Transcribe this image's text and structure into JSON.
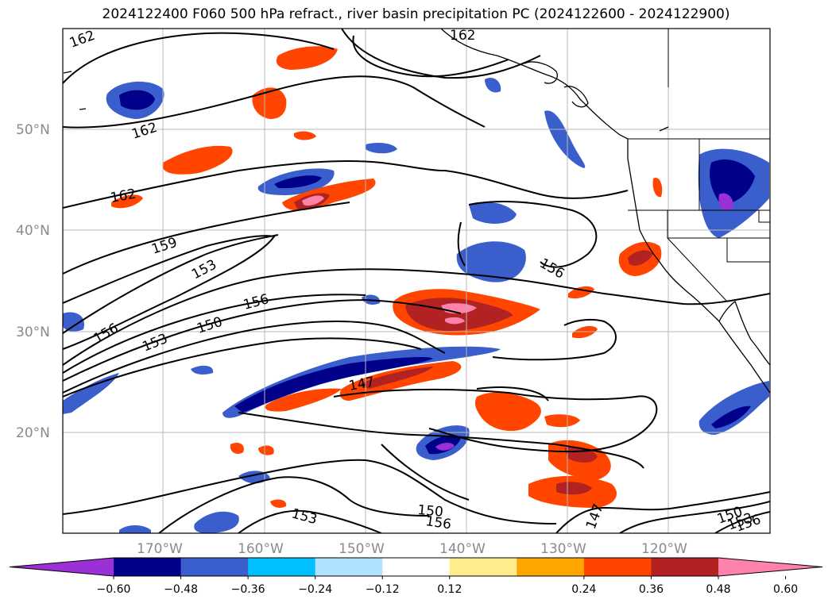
{
  "title": "2024122400 F060 500 hPa refract., river basin precipitation PC (2024122600 - 2024122900)",
  "lat_labels": [
    "50°N",
    "40°N",
    "30°N",
    "20°N"
  ],
  "lon_labels": [
    "170°W",
    "160°W",
    "150°W",
    "140°W",
    "130°W",
    "120°W"
  ],
  "contour_labels": [
    "162",
    "162",
    "162",
    "162",
    "159",
    "153",
    "156",
    "150",
    "153",
    "156",
    "147",
    "156",
    "150",
    "156",
    "153",
    "147",
    "150",
    "153",
    "156"
  ],
  "colorbar": {
    "ticks": [
      "−0.60",
      "−0.48",
      "−0.36",
      "−0.24",
      "−0.12",
      "0.12",
      "0.24",
      "0.36",
      "0.48",
      "0.60"
    ],
    "colors": [
      "#9b30d6",
      "#00008b",
      "#3a5fcd",
      "#00bfff",
      "#b0e2ff",
      "#ffffff",
      "#ffec8b",
      "#ffa500",
      "#ff4500",
      "#b22222",
      "#ff82ab"
    ]
  }
}
